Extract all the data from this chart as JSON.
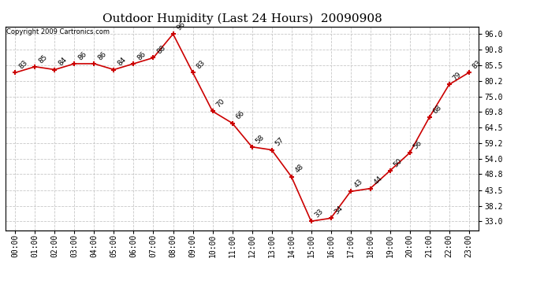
{
  "title": "Outdoor Humidity (Last 24 Hours)  20090908",
  "copyright": "Copyright 2009 Cartronics.com",
  "x_labels": [
    "00:00",
    "01:00",
    "02:00",
    "03:00",
    "04:00",
    "05:00",
    "06:00",
    "07:00",
    "08:00",
    "09:00",
    "10:00",
    "11:00",
    "12:00",
    "13:00",
    "14:00",
    "15:00",
    "16:00",
    "17:00",
    "18:00",
    "19:00",
    "20:00",
    "21:00",
    "22:00",
    "23:00"
  ],
  "x_values": [
    0,
    1,
    2,
    3,
    4,
    5,
    6,
    7,
    8,
    9,
    10,
    11,
    12,
    13,
    14,
    15,
    16,
    17,
    18,
    19,
    20,
    21,
    22,
    23
  ],
  "y_values": [
    83,
    85,
    84,
    86,
    86,
    84,
    86,
    88,
    96,
    83,
    70,
    66,
    58,
    57,
    48,
    33,
    34,
    43,
    44,
    50,
    56,
    68,
    79,
    83
  ],
  "point_labels": [
    "83",
    "85",
    "84",
    "86",
    "86",
    "84",
    "86",
    "88",
    "96",
    "83",
    "70",
    "66",
    "58",
    "57",
    "48",
    "33",
    "34",
    "43",
    "44",
    "50",
    "56",
    "68",
    "79",
    "83"
  ],
  "y_right_ticks": [
    33.0,
    38.2,
    43.5,
    48.8,
    54.0,
    59.2,
    64.5,
    69.8,
    75.0,
    80.2,
    85.5,
    90.8,
    96.0
  ],
  "line_color": "#cc0000",
  "marker_color": "#cc0000",
  "background_color": "#ffffff",
  "grid_color": "#c8c8c8",
  "title_fontsize": 11,
  "label_fontsize": 7,
  "annotation_fontsize": 6.5,
  "copyright_fontsize": 6,
  "ylim_min": 30.0,
  "ylim_max": 98.5
}
